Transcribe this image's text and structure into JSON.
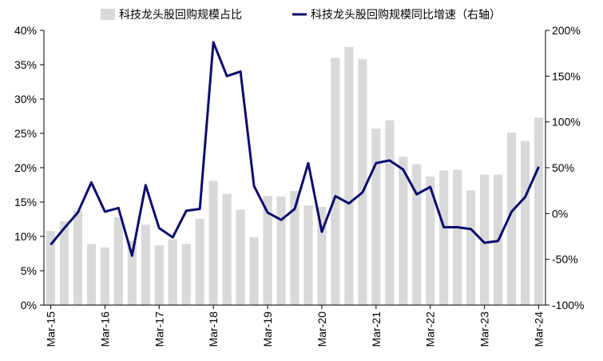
{
  "chart_data": {
    "type": "bar+line",
    "legend": [
      {
        "label": "科技龙头股回购规模占比",
        "kind": "bar",
        "color": "#d9d9d9"
      },
      {
        "label": "科技龙头股回购规模同比增速（右轴）",
        "kind": "line",
        "color": "#0b0b6e"
      }
    ],
    "legend_position": "top",
    "categories": [
      "Mar-15",
      "Jun-15",
      "Sep-15",
      "Dec-15",
      "Mar-16",
      "Jun-16",
      "Sep-16",
      "Dec-16",
      "Mar-17",
      "Jun-17",
      "Sep-17",
      "Dec-17",
      "Mar-18",
      "Jun-18",
      "Sep-18",
      "Dec-18",
      "Mar-19",
      "Jun-19",
      "Sep-19",
      "Dec-19",
      "Mar-20",
      "Jun-20",
      "Sep-20",
      "Dec-20",
      "Mar-21",
      "Jun-21",
      "Sep-21",
      "Dec-21",
      "Mar-22",
      "Jun-22",
      "Sep-22",
      "Dec-22",
      "Mar-23",
      "Jun-23",
      "Sep-23",
      "Dec-23",
      "Mar-24"
    ],
    "x_tick_labels": [
      "Mar-15",
      "Mar-16",
      "Mar-17",
      "Mar-18",
      "Mar-19",
      "Mar-20",
      "Mar-21",
      "Mar-22",
      "Mar-23",
      "Mar-24"
    ],
    "bar_values": [
      10.8,
      12.2,
      13.8,
      8.9,
      8.4,
      12.8,
      9.3,
      11.7,
      8.7,
      9.6,
      8.9,
      12.6,
      18.1,
      16.2,
      13.9,
      9.9,
      15.9,
      15.8,
      16.6,
      14.5,
      14.3,
      36.0,
      37.6,
      35.8,
      25.7,
      26.9,
      21.6,
      20.5,
      18.7,
      19.6,
      19.7,
      16.7,
      19.0,
      19.0,
      25.1,
      23.9,
      27.3
    ],
    "line_values": [
      -34,
      -16,
      1,
      34,
      2,
      6,
      -46,
      31,
      -16,
      -26,
      3,
      5,
      187,
      150,
      155,
      30,
      1,
      -7,
      5,
      55,
      -20,
      19,
      11,
      23,
      55,
      58,
      48,
      21,
      29,
      -15,
      -15,
      -17,
      -32,
      -30,
      2,
      18,
      51
    ],
    "y_left": {
      "ticks": [
        "0%",
        "5%",
        "10%",
        "15%",
        "20%",
        "25%",
        "30%",
        "35%",
        "40%"
      ],
      "range": [
        0,
        40
      ]
    },
    "y_right": {
      "ticks": [
        "-100%",
        "-50%",
        "0%",
        "50%",
        "100%",
        "150%",
        "200%"
      ],
      "range": [
        -100,
        200
      ],
      "negative_color": "#e60000"
    }
  }
}
